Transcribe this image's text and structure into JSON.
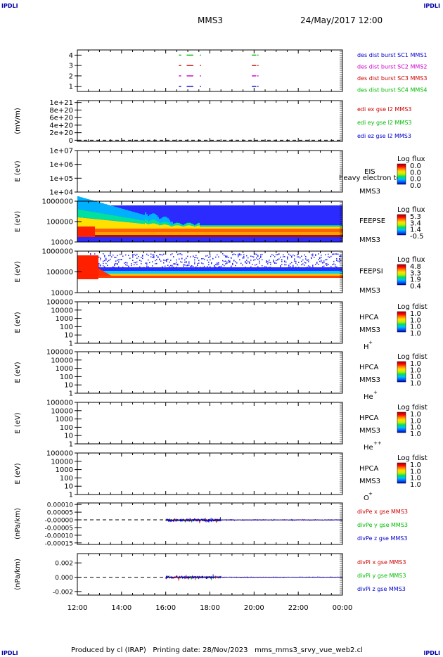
{
  "corner_label": "IPDLI",
  "title": "MMS3",
  "datetime": "24/May/2017 12:00",
  "footer": {
    "produced_by": "Produced by cl (IRAP)",
    "printing_date": "Printing date: 28/Nov/2023",
    "filename": "mms_mms3_srvy_vue_web2.cl"
  },
  "colorbar_colors": [
    "#0000b0",
    "#0060ff",
    "#00c0ff",
    "#00e060",
    "#c0f000",
    "#ffe000",
    "#ff8000",
    "#ff0000",
    "#b00000"
  ],
  "x_axis": {
    "tick_labels": [
      "12:00",
      "14:00",
      "16:00",
      "18:00",
      "20:00",
      "22:00",
      "00:00"
    ]
  },
  "chart_data": [
    {
      "type": "scatter",
      "panel": "burst",
      "y_tick_labels": [
        "4",
        "3",
        "2",
        "1"
      ],
      "yvals": [
        4,
        3,
        2,
        1
      ],
      "ylim": [
        0.5,
        4.5
      ],
      "legend": [
        {
          "label": "des dist burst SC1 MMS1",
          "color": "#0000cc"
        },
        {
          "label": "des dist burst SC2 MMS2",
          "color": "#cc00cc"
        },
        {
          "label": "des dist burst SC3 MMS3",
          "color": "#cc0000"
        },
        {
          "label": "des dist burst SC4 MMS4",
          "color": "#00bb00"
        }
      ],
      "segments": [
        [
          16.6,
          16.7
        ],
        [
          16.95,
          17.25
        ],
        [
          17.55,
          17.6
        ],
        [
          19.9,
          20.1
        ],
        [
          20.15,
          20.2
        ]
      ]
    },
    {
      "type": "line",
      "panel": "edi",
      "ylabel": "(mV/m)",
      "y_tick_labels": [
        "1e+21",
        "8e+20",
        "6e+20",
        "4e+20",
        "2e+20",
        "0"
      ],
      "y_tick_values": [
        1e+21,
        8e+20,
        6e+20,
        4e+20,
        2e+20,
        0
      ],
      "ylim": [
        -3e+19,
        1.05e+21
      ],
      "legend": [
        {
          "label": "edi ex gse l2 MMS3",
          "color": "#cc0000"
        },
        {
          "label": "edi ey gse l2 MMS3",
          "color": "#00bb00"
        },
        {
          "label": "edi ez gse l2 MMS3",
          "color": "#0000cc"
        }
      ]
    },
    {
      "type": "heatmap",
      "panel": "eis",
      "ylabel": "E (eV)",
      "y_tick_labels": [
        "1e+07",
        "1e+06",
        "1e+05",
        "1e+04"
      ],
      "instrument": "EIS",
      "spacecraft": "MMS3",
      "overlap_text": "heavy electron to",
      "colorbar_title": "Log flux",
      "colorbar_labels": [
        "0.0",
        "0.0",
        "0.0",
        "0.0"
      ]
    },
    {
      "type": "heatmap",
      "panel": "feepse",
      "ylabel": "E (eV)",
      "y_tick_labels": [
        "1000000",
        "100000",
        "10000"
      ],
      "instrument": "FEEPSE",
      "spacecraft": "MMS3",
      "colorbar_title": "Log flux",
      "colorbar_labels": [
        "5.3",
        "3.4",
        "1.4",
        "-0.5"
      ]
    },
    {
      "type": "heatmap",
      "panel": "feepsi",
      "ylabel": "E (eV)",
      "y_tick_labels": [
        "1000000",
        "100000",
        "10000"
      ],
      "instrument": "FEEPSI",
      "spacecraft": "MMS3",
      "colorbar_title": "Log flux",
      "colorbar_labels": [
        "4.8",
        "3.3",
        "1.9",
        "0.4"
      ]
    },
    {
      "type": "heatmap",
      "panel": "hpca_h",
      "ylabel": "E (eV)",
      "y_tick_labels": [
        "100000",
        "10000",
        "1000",
        "100",
        "10",
        "1"
      ],
      "instrument": "HPCA",
      "spacecraft": "MMS3",
      "species": "H",
      "species_sup": "+",
      "colorbar_title": "Log fdist",
      "colorbar_labels": [
        "1.0",
        "1.0",
        "1.0",
        "1.0"
      ]
    },
    {
      "type": "heatmap",
      "panel": "hpca_he",
      "ylabel": "E (eV)",
      "y_tick_labels": [
        "100000",
        "10000",
        "1000",
        "100",
        "10",
        "1"
      ],
      "instrument": "HPCA",
      "spacecraft": "MMS3",
      "species": "He",
      "species_sup": "+",
      "colorbar_title": "Log fdist",
      "colorbar_labels": [
        "1.0",
        "1.0",
        "1.0",
        "1.0"
      ]
    },
    {
      "type": "heatmap",
      "panel": "hpca_he2",
      "ylabel": "E (eV)",
      "y_tick_labels": [
        "100000",
        "10000",
        "1000",
        "100",
        "10",
        "1"
      ],
      "instrument": "HPCA",
      "spacecraft": "MMS3",
      "species": "He",
      "species_sup": "++",
      "colorbar_title": "Log fdist",
      "colorbar_labels": [
        "1.0",
        "1.0",
        "1.0",
        "1.0"
      ]
    },
    {
      "type": "heatmap",
      "panel": "hpca_o",
      "ylabel": "E (eV)",
      "y_tick_labels": [
        "100000",
        "10000",
        "1000",
        "100",
        "10",
        "1"
      ],
      "instrument": "HPCA",
      "spacecraft": "MMS3",
      "species": "O",
      "species_sup": "+",
      "colorbar_title": "Log fdist",
      "colorbar_labels": [
        "1.0",
        "1.0",
        "1.0",
        "1.0"
      ]
    },
    {
      "type": "line",
      "panel": "divpe",
      "ylabel": "(nPa/km)",
      "y_tick_labels": [
        "0.00010",
        "0.00005",
        "-0.00000",
        "-0.00005",
        "-0.00010",
        "-0.00015"
      ],
      "y_tick_values": [
        0.0001,
        5e-05,
        0,
        -5e-05,
        -0.0001,
        -0.00015
      ],
      "ylim": [
        -0.00016,
        0.00011
      ],
      "legend": [
        {
          "label": "divPe x gse MMS3",
          "color": "#cc0000"
        },
        {
          "label": "divPe y gse MMS3",
          "color": "#00bb00"
        },
        {
          "label": "divPe z gse MMS3",
          "color": "#0000cc"
        }
      ]
    },
    {
      "type": "line",
      "panel": "divpi",
      "ylabel": "(nPa/km)",
      "y_tick_labels": [
        "0.002",
        "0.000",
        "-0.002"
      ],
      "y_tick_values": [
        0.002,
        0,
        -0.002
      ],
      "ylim": [
        -0.0025,
        0.0033
      ],
      "legend": [
        {
          "label": "divPi x gse MMS3",
          "color": "#cc0000"
        },
        {
          "label": "divPi y gse MMS3",
          "color": "#00bb00"
        },
        {
          "label": "divPi z gse MMS3",
          "color": "#0000cc"
        }
      ]
    }
  ]
}
